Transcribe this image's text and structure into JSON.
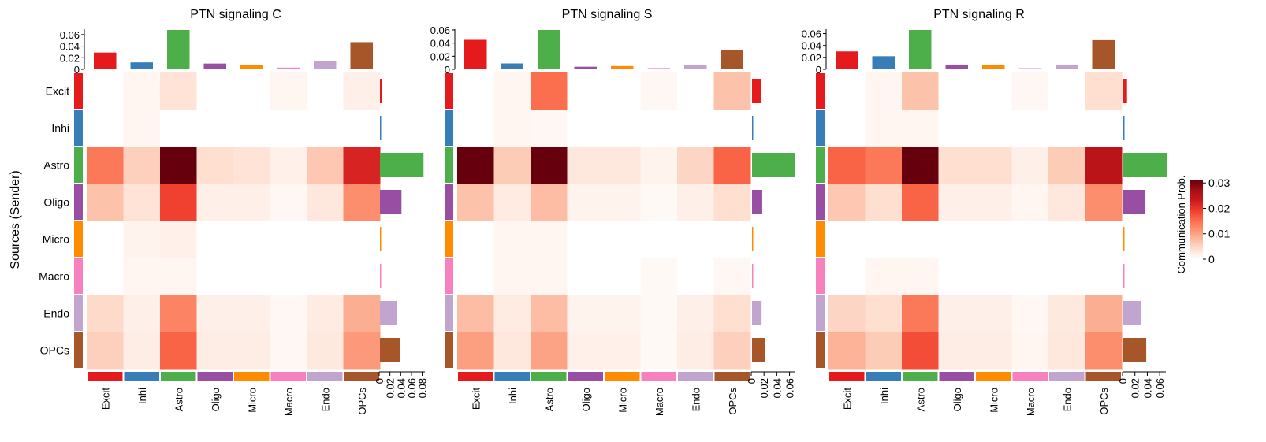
{
  "figure": {
    "y_axis_label": "Sources (Sender)",
    "legend_title": "Communication Prob.",
    "legend_ticks": [
      "0",
      "0.01",
      "0.02",
      "0.03"
    ],
    "legend_range": [
      0,
      0.031
    ],
    "legend_colors": [
      "#ffffff",
      "#fee0d2",
      "#fcbba1",
      "#fc9272",
      "#fb6a4a",
      "#ef3b2c",
      "#cb181d",
      "#a50f15",
      "#67000d"
    ]
  },
  "cell_types": [
    {
      "name": "Excit",
      "color": "#e41a1c"
    },
    {
      "name": "Inhi",
      "color": "#377eb8"
    },
    {
      "name": "Astro",
      "color": "#4daf4a"
    },
    {
      "name": "Oligo",
      "color": "#984ea3"
    },
    {
      "name": "Micro",
      "color": "#ff8c00"
    },
    {
      "name": "Macro",
      "color": "#f781bf"
    },
    {
      "name": "Endo",
      "color": "#c2a5cf"
    },
    {
      "name": "OPCs",
      "color": "#a65628"
    }
  ],
  "chart_data": [
    {
      "type": "heatmap",
      "title": "PTN signaling  C",
      "rows": [
        "Excit",
        "Inhi",
        "Astro",
        "Oligo",
        "Micro",
        "Macro",
        "Endo",
        "OPCs"
      ],
      "columns": [
        "Excit",
        "Inhi",
        "Astro",
        "Oligo",
        "Micro",
        "Macro",
        "Endo",
        "OPCs"
      ],
      "values": [
        [
          0,
          0.0012,
          0.0035,
          0,
          0,
          0.0012,
          0,
          0.002
        ],
        [
          0,
          0.0012,
          0,
          0,
          0,
          0,
          0,
          0
        ],
        [
          0.014,
          0.0055,
          0.031,
          0.004,
          0.0035,
          0.0018,
          0.0065,
          0.022
        ],
        [
          0.007,
          0.0035,
          0.019,
          0.002,
          0.002,
          0.001,
          0.003,
          0.012
        ],
        [
          0,
          0.0015,
          0.0018,
          0,
          0,
          0,
          0,
          0
        ],
        [
          0,
          0.0012,
          0.0012,
          0,
          0,
          0,
          0,
          0
        ],
        [
          0.0045,
          0.002,
          0.013,
          0.002,
          0.002,
          0.001,
          0.0025,
          0.009
        ],
        [
          0.0055,
          0.0022,
          0.016,
          0.0022,
          0.0022,
          0.001,
          0.0028,
          0.011
        ]
      ],
      "top_bar": {
        "values": [
          0.029,
          0.012,
          0.071,
          0.01,
          0.008,
          0.003,
          0.014,
          0.047
        ],
        "ylim": [
          0,
          0.068
        ],
        "ticks": [
          "0",
          "0.02",
          "0.04",
          "0.06"
        ],
        "tick_values": [
          0,
          0.02,
          0.04,
          0.06
        ]
      },
      "right_bar": {
        "values": [
          0.004,
          0.001,
          0.081,
          0.04,
          0.002,
          0.001,
          0.031,
          0.038
        ],
        "xlim": [
          0,
          0.085
        ],
        "ticks": [
          "0",
          "0.02",
          "0.04",
          "0.06",
          "0.08"
        ],
        "tick_values": [
          0,
          0.02,
          0.04,
          0.06,
          0.08
        ]
      }
    },
    {
      "type": "heatmap",
      "title": "PTN signaling  S",
      "rows": [
        "Excit",
        "Inhi",
        "Astro",
        "Oligo",
        "Micro",
        "Macro",
        "Endo",
        "OPCs"
      ],
      "columns": [
        "Excit",
        "Inhi",
        "Astro",
        "Oligo",
        "Micro",
        "Macro",
        "Endo",
        "OPCs"
      ],
      "values": [
        [
          0,
          0.0012,
          0.015,
          0,
          0,
          0.001,
          0,
          0.007
        ],
        [
          0,
          0.0012,
          0.001,
          0,
          0,
          0,
          0,
          0
        ],
        [
          0.031,
          0.006,
          0.031,
          0.003,
          0.003,
          0.0015,
          0.005,
          0.016
        ],
        [
          0.007,
          0.0025,
          0.0075,
          0.0015,
          0.0015,
          0.0008,
          0.002,
          0.004
        ],
        [
          0,
          0.0012,
          0.0012,
          0,
          0,
          0,
          0,
          0
        ],
        [
          0,
          0.0012,
          0.0012,
          0,
          0,
          0.0008,
          0,
          0.001
        ],
        [
          0.0075,
          0.0025,
          0.0075,
          0.0015,
          0.0015,
          0.0008,
          0.002,
          0.004
        ],
        [
          0.0105,
          0.003,
          0.01,
          0.0018,
          0.0018,
          0.0008,
          0.0022,
          0.0055
        ]
      ],
      "top_bar": {
        "values": [
          0.045,
          0.009,
          0.063,
          0.004,
          0.005,
          0.002,
          0.007,
          0.029
        ],
        "ylim": [
          0,
          0.06
        ],
        "ticks": [
          "0",
          "0.02",
          "0.04",
          "0.06"
        ],
        "tick_values": [
          0,
          0.02,
          0.04,
          0.06
        ]
      },
      "right_bar": {
        "values": [
          0.014,
          0.001,
          0.068,
          0.016,
          0.001,
          0.001,
          0.015,
          0.02
        ],
        "xlim": [
          0,
          0.068
        ],
        "ticks": [
          "0",
          "0.02",
          "0.04",
          "0.06"
        ],
        "tick_values": [
          0,
          0.02,
          0.04,
          0.06
        ]
      }
    },
    {
      "type": "heatmap",
      "title": "PTN signaling  R",
      "rows": [
        "Excit",
        "Inhi",
        "Astro",
        "Oligo",
        "Micro",
        "Macro",
        "Endo",
        "OPCs"
      ],
      "columns": [
        "Excit",
        "Inhi",
        "Astro",
        "Oligo",
        "Micro",
        "Macro",
        "Endo",
        "OPCs"
      ],
      "values": [
        [
          0,
          0.0012,
          0.007,
          0,
          0,
          0.001,
          0,
          0.004
        ],
        [
          0,
          0.0012,
          0.0012,
          0,
          0,
          0,
          0,
          0
        ],
        [
          0.016,
          0.014,
          0.031,
          0.004,
          0.004,
          0.002,
          0.006,
          0.025
        ],
        [
          0.0065,
          0.004,
          0.016,
          0.002,
          0.002,
          0.0012,
          0.003,
          0.012
        ],
        [
          0,
          0,
          0,
          0,
          0,
          0,
          0,
          0
        ],
        [
          0,
          0.0012,
          0.0012,
          0,
          0,
          0,
          0,
          0
        ],
        [
          0.005,
          0.004,
          0.014,
          0.002,
          0.002,
          0.001,
          0.0028,
          0.009
        ],
        [
          0.0085,
          0.006,
          0.018,
          0.0022,
          0.0022,
          0.0012,
          0.003,
          0.012
        ]
      ],
      "top_bar": {
        "values": [
          0.03,
          0.022,
          0.066,
          0.008,
          0.007,
          0.002,
          0.008,
          0.049
        ],
        "ylim": [
          0,
          0.066
        ],
        "ticks": [
          "0",
          "0.02",
          "0.04",
          "0.06"
        ],
        "tick_values": [
          0,
          0.02,
          0.04,
          0.06
        ]
      },
      "right_bar": {
        "values": [
          0.006,
          0.001,
          0.07,
          0.035,
          0.0005,
          0.0005,
          0.029,
          0.037
        ],
        "xlim": [
          0,
          0.07
        ],
        "ticks": [
          "0",
          "0.02",
          "0.04",
          "0.06"
        ],
        "tick_values": [
          0,
          0.02,
          0.04,
          0.06
        ]
      }
    }
  ]
}
